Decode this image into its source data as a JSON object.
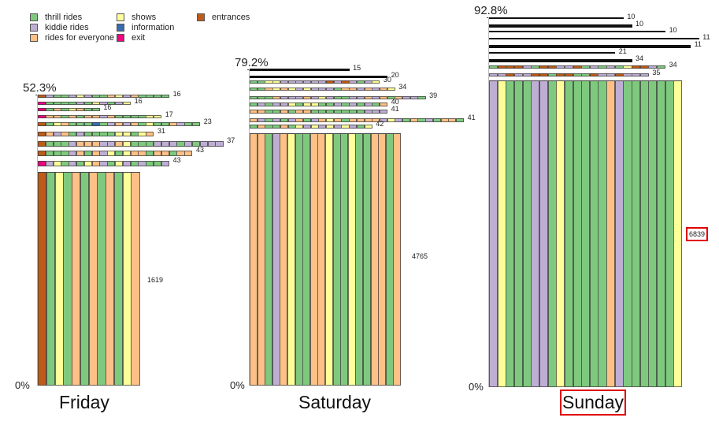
{
  "colors": {
    "T": "#7fc97f",
    "K": "#beaed4",
    "R": "#fdc086",
    "S": "#ffff99",
    "I": "#386cb0",
    "X": "#f0027f",
    "E": "#bf5b17",
    "B": "#111111"
  },
  "legend": [
    {
      "code": "T",
      "label": "thrill rides"
    },
    {
      "code": "K",
      "label": "kiddie rides"
    },
    {
      "code": "R",
      "label": "rides for everyone"
    },
    {
      "code": "S",
      "label": "shows"
    },
    {
      "code": "I",
      "label": "information"
    },
    {
      "code": "X",
      "label": "exit"
    },
    {
      "code": "E",
      "label": "entrances"
    }
  ],
  "chart_data": {
    "type": "bar",
    "title": "",
    "panels": [
      {
        "name": "Friday",
        "top_percent": "52.3%",
        "bottom_percent": "0%",
        "main_value": "1619",
        "main_bar": "ETSTRTRTRTSR",
        "rows": [
          {
            "value": "16",
            "seq": "EKTTKSKTTRSKRTTTT"
          },
          {
            "value": "16",
            "seq": "XTTTTKTSKTKS"
          },
          {
            "value": "16",
            "seq": "XTRTSRTT"
          },
          {
            "value": "17",
            "seq": "XRRTRTRRKRTTTTSS"
          },
          {
            "value": "23",
            "seq": "ETSRTTTITKRKRTSTTRKTT"
          },
          {
            "value": "31",
            "seq": "ERKRTKTTTTSSTSR"
          },
          {
            "value": "37",
            "seq": "ETTTKRRRKKRSTTTKKKTKTKKK"
          },
          {
            "value": "43",
            "seq": "ETTTKRTRKSTSRRTRRTRR"
          },
          {
            "value": "43",
            "seq": "XKSTKTSRKTSKTKTTK"
          }
        ]
      },
      {
        "name": "Saturday",
        "top_percent": "79.2%",
        "bottom_percent": "0%",
        "main_value": "4765",
        "main_bar": "RRTKRSTTRRSTTSTTRRTR",
        "rows": [
          {
            "value": "15",
            "seq": "BBBBBBBBBBBBB"
          },
          {
            "value": "20",
            "seq": "BBBBBBBBBBBBBBBBBB"
          },
          {
            "value": "30",
            "seq": "TTSSKKKKKKEKEKTKS"
          },
          {
            "value": "34",
            "seq": "TTRSRSKSKKKTRRKRKRS"
          },
          {
            "value": "39",
            "seq": "TTTRKKKRKSKTTKKRKRTRKKT"
          },
          {
            "value": "40",
            "seq": "TKTKKSTSSTTKTKTKTR"
          },
          {
            "value": "41",
            "seq": "RRTTRTRRTTTTTTTKKK"
          },
          {
            "value": "41",
            "seq": "RKTKTKRTKRSRTRRRRKSKTRTKTRRT"
          },
          {
            "value": "42",
            "seq": "TRTTRTSKSKSKSKTS"
          }
        ]
      },
      {
        "name": "Sunday",
        "top_percent": "92.8%",
        "bottom_percent": "0%",
        "main_value": "6839",
        "main_bar": "KSTTTKKTSTTTTTRKTTTTTTS",
        "rows": [
          {
            "value": "10",
            "seq": "BBBBBBBBBBBBBBBB"
          },
          {
            "value": "10",
            "seq": "BBBBBBBBBBBBBBBBB"
          },
          {
            "value": "10",
            "seq": "BBBBBBBBBBBBBBBBBBBBB"
          },
          {
            "value": "11",
            "seq": "BBBBBBBBBBBBBBBBBBBBBBBBB"
          },
          {
            "value": "11",
            "seq": "BBBBBBBBBBBBBBBBBBBBBBBB"
          },
          {
            "value": "21",
            "seq": "BBBBBBBBBBBBBBB"
          },
          {
            "value": "34",
            "seq": "BBBBBBBBBBBBBBBBB"
          },
          {
            "value": "34",
            "seq": "TEEEKTEEKKETKTKTSEEKT"
          },
          {
            "value": "35",
            "seq": "KKEKKEETEETTEKKEKKK"
          }
        ]
      }
    ]
  }
}
